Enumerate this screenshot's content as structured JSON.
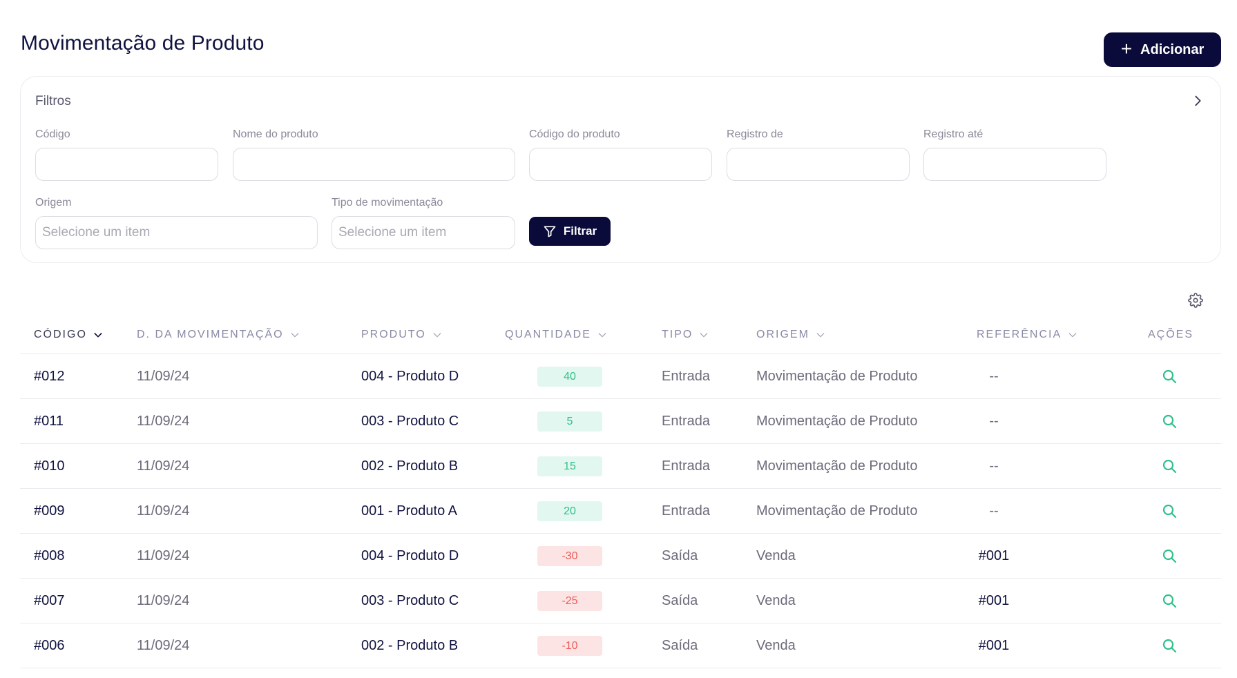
{
  "header": {
    "title": "Movimentação de Produto",
    "add_label": "Adicionar"
  },
  "filters": {
    "title": "Filtros",
    "fields": {
      "codigo": {
        "label": "Código",
        "value": ""
      },
      "nome_produto": {
        "label": "Nome do produto",
        "value": ""
      },
      "codigo_produto": {
        "label": "Código do produto",
        "value": ""
      },
      "registro_de": {
        "label": "Registro de",
        "value": ""
      },
      "registro_ate": {
        "label": "Registro até",
        "value": ""
      },
      "origem": {
        "label": "Origem",
        "placeholder": "Selecione um item"
      },
      "tipo_movimentacao": {
        "label": "Tipo de movimentação",
        "placeholder": "Selecione um item"
      }
    },
    "filter_label": "Filtrar"
  },
  "table": {
    "columns": {
      "codigo": "CÓDIGO",
      "data": "D. DA MOVIMENTAÇÃO",
      "produto": "PRODUTO",
      "quantidade": "QUANTIDADE",
      "tipo": "TIPO",
      "origem": "ORIGEM",
      "referencia": "REFERÊNCIA",
      "acoes": "AÇÕES"
    },
    "rows": [
      {
        "codigo": "#012",
        "data": "11/09/24",
        "produto": "004 - Produto D",
        "quantidade": "40",
        "tipo": "Entrada",
        "origem": "Movimentação de Produto",
        "referencia": "--"
      },
      {
        "codigo": "#011",
        "data": "11/09/24",
        "produto": "003 - Produto C",
        "quantidade": "5",
        "tipo": "Entrada",
        "origem": "Movimentação de Produto",
        "referencia": "--"
      },
      {
        "codigo": "#010",
        "data": "11/09/24",
        "produto": "002 - Produto B",
        "quantidade": "15",
        "tipo": "Entrada",
        "origem": "Movimentação de Produto",
        "referencia": "--"
      },
      {
        "codigo": "#009",
        "data": "11/09/24",
        "produto": "001 - Produto A",
        "quantidade": "20",
        "tipo": "Entrada",
        "origem": "Movimentação de Produto",
        "referencia": "--"
      },
      {
        "codigo": "#008",
        "data": "11/09/24",
        "produto": "004 - Produto D",
        "quantidade": "-30",
        "tipo": "Saída",
        "origem": "Venda",
        "referencia": "#001"
      },
      {
        "codigo": "#007",
        "data": "11/09/24",
        "produto": "003 - Produto C",
        "quantidade": "-25",
        "tipo": "Saída",
        "origem": "Venda",
        "referencia": "#001"
      },
      {
        "codigo": "#006",
        "data": "11/09/24",
        "produto": "002 - Produto B",
        "quantidade": "-10",
        "tipo": "Saída",
        "origem": "Venda",
        "referencia": "#001"
      }
    ]
  },
  "icons": {
    "add": "plus-icon",
    "expand": "chevron-right-icon",
    "filter": "funnel-icon",
    "settings": "gear-icon",
    "sort": "chevron-down-icon",
    "view": "search-icon"
  },
  "colors": {
    "primary": "#0b0b3b",
    "positive_bg": "#e2f7ef",
    "positive_text": "#2fc08a",
    "negative_bg": "#fde4e4",
    "negative_text": "#ec5a5a",
    "action": "#2fc08a"
  }
}
